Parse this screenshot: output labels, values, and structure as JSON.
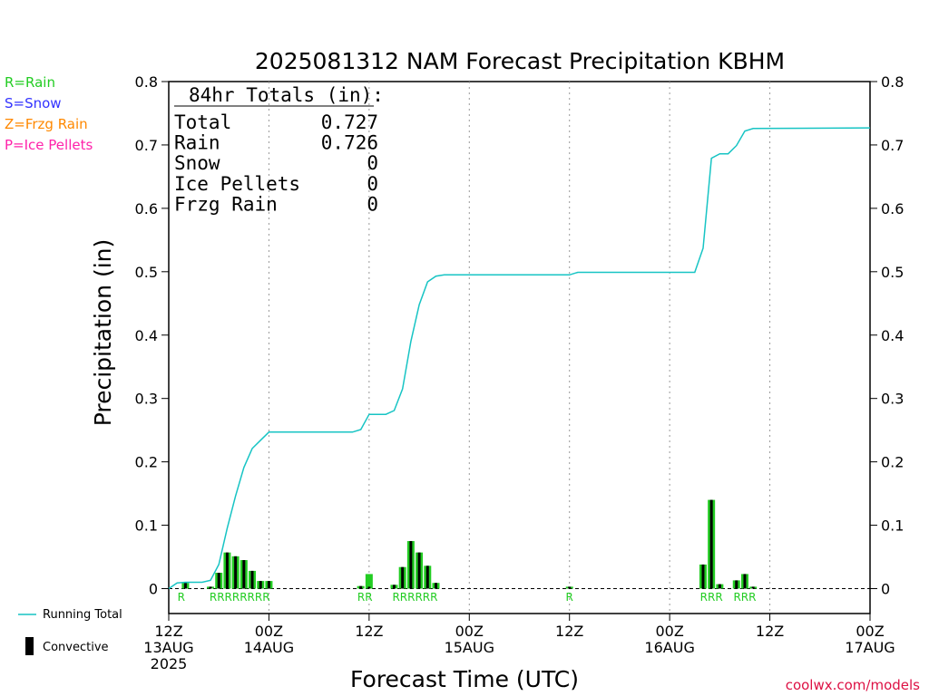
{
  "title": "2025081312 NAM Forecast Precipitation KBHM",
  "legend_types": [
    {
      "label": "R=Rain",
      "color": "#22cc22"
    },
    {
      "label": "S=Snow",
      "color": "#3333ff"
    },
    {
      "label": "Z=Frzg Rain",
      "color": "#ff8800"
    },
    {
      "label": "P=Ice Pellets",
      "color": "#ff22aa"
    }
  ],
  "totals_box": {
    "heading": "84hr Totals (in):",
    "rows": [
      {
        "label": "Total",
        "value": "0.727"
      },
      {
        "label": "Rain",
        "value": "0.726"
      },
      {
        "label": "Snow",
        "value": "0"
      },
      {
        "label": "Ice Pellets",
        "value": "0"
      },
      {
        "label": "Frzg Rain",
        "value": "0"
      }
    ]
  },
  "bottom_legend": {
    "running_total": "Running Total",
    "convective": "Convective"
  },
  "credit": "coolwx.com/models",
  "colors": {
    "running_total": "#17c4c4",
    "bar_fill": "#22cc22",
    "bar_convective": "#000000",
    "grid": "#999999",
    "rain_label": "#22cc22"
  },
  "chart_data": {
    "type": "bar",
    "title": "2025081312 NAM Forecast Precipitation KBHM",
    "xlabel": "Forecast Time (UTC)",
    "ylabel": "Precipitation (in)",
    "ylim": [
      0,
      0.8
    ],
    "xlim_hours": [
      0,
      84
    ],
    "yticks": [
      "0",
      "0.1",
      "0.2",
      "0.3",
      "0.4",
      "0.5",
      "0.6",
      "0.7",
      "0.8"
    ],
    "xticks": [
      {
        "hour": 0,
        "lines": [
          "12Z",
          "13AUG",
          "2025"
        ]
      },
      {
        "hour": 12,
        "lines": [
          "00Z",
          "14AUG"
        ]
      },
      {
        "hour": 24,
        "lines": [
          "12Z"
        ]
      },
      {
        "hour": 36,
        "lines": [
          "00Z",
          "15AUG"
        ]
      },
      {
        "hour": 48,
        "lines": [
          "12Z"
        ]
      },
      {
        "hour": 60,
        "lines": [
          "00Z",
          "16AUG"
        ]
      },
      {
        "hour": 72,
        "lines": [
          "12Z"
        ]
      },
      {
        "hour": 84,
        "lines": [
          "00Z",
          "17AUG"
        ]
      }
    ],
    "grid": "dotted vertical lines every 12 hours",
    "bars": [
      {
        "hour": 2,
        "value": 0.009,
        "conv": 0.009,
        "type": "R"
      },
      {
        "hour": 5,
        "value": 0.003,
        "conv": 0.003,
        "type": "R"
      },
      {
        "hour": 6,
        "value": 0.025,
        "conv": 0.025,
        "type": "R"
      },
      {
        "hour": 7,
        "value": 0.057,
        "conv": 0.057,
        "type": "R"
      },
      {
        "hour": 8,
        "value": 0.051,
        "conv": 0.051,
        "type": "R"
      },
      {
        "hour": 9,
        "value": 0.045,
        "conv": 0.045,
        "type": "R"
      },
      {
        "hour": 10,
        "value": 0.028,
        "conv": 0.028,
        "type": "R"
      },
      {
        "hour": 11,
        "value": 0.012,
        "conv": 0.012,
        "type": "R"
      },
      {
        "hour": 12,
        "value": 0.012,
        "conv": 0.012,
        "type": "R"
      },
      {
        "hour": 23,
        "value": 0.004,
        "conv": 0.004,
        "type": "R"
      },
      {
        "hour": 24,
        "value": 0.023,
        "conv": 0.003,
        "type": "R"
      },
      {
        "hour": 27,
        "value": 0.006,
        "conv": 0.006,
        "type": "R"
      },
      {
        "hour": 28,
        "value": 0.034,
        "conv": 0.034,
        "type": "R"
      },
      {
        "hour": 29,
        "value": 0.075,
        "conv": 0.075,
        "type": "R"
      },
      {
        "hour": 30,
        "value": 0.057,
        "conv": 0.057,
        "type": "R"
      },
      {
        "hour": 31,
        "value": 0.036,
        "conv": 0.036,
        "type": "R"
      },
      {
        "hour": 32,
        "value": 0.009,
        "conv": 0.009,
        "type": "R"
      },
      {
        "hour": 48,
        "value": 0.003,
        "conv": 0.003,
        "type": "R"
      },
      {
        "hour": 64,
        "value": 0.038,
        "conv": 0.038,
        "type": "R"
      },
      {
        "hour": 65,
        "value": 0.14,
        "conv": 0.14,
        "type": "R"
      },
      {
        "hour": 66,
        "value": 0.007,
        "conv": 0.007,
        "type": "R"
      },
      {
        "hour": 68,
        "value": 0.013,
        "conv": 0.013,
        "type": "R"
      },
      {
        "hour": 69,
        "value": 0.023,
        "conv": 0.023,
        "type": "R"
      },
      {
        "hour": 70,
        "value": 0.003,
        "conv": 0.003,
        "type": "R"
      }
    ],
    "type_labels": [
      {
        "hour": 1.5,
        "text": "R"
      },
      {
        "hour": 8.5,
        "text": "RRRRRRRR"
      },
      {
        "hour": 23.5,
        "text": "RR"
      },
      {
        "hour": 29.5,
        "text": "RRRRRR"
      },
      {
        "hour": 48,
        "text": "R"
      },
      {
        "hour": 65,
        "text": "RRR"
      },
      {
        "hour": 69,
        "text": "RRR"
      }
    ],
    "running_total": {
      "x": [
        0,
        1,
        2,
        3,
        4,
        5,
        6,
        7,
        8,
        9,
        10,
        11,
        12,
        13,
        22,
        23,
        24,
        25,
        26,
        27,
        28,
        29,
        30,
        31,
        32,
        33,
        48,
        49,
        60,
        61,
        62,
        63,
        64,
        65,
        66,
        67,
        68,
        69,
        70,
        84
      ],
      "y": [
        0.0,
        0.009,
        0.01,
        0.01,
        0.01,
        0.013,
        0.038,
        0.095,
        0.146,
        0.191,
        0.221,
        0.234,
        0.247,
        0.247,
        0.247,
        0.251,
        0.275,
        0.275,
        0.275,
        0.281,
        0.315,
        0.39,
        0.448,
        0.484,
        0.493,
        0.495,
        0.495,
        0.499,
        0.499,
        0.499,
        0.499,
        0.499,
        0.537,
        0.679,
        0.686,
        0.686,
        0.699,
        0.722,
        0.726,
        0.727
      ]
    }
  }
}
